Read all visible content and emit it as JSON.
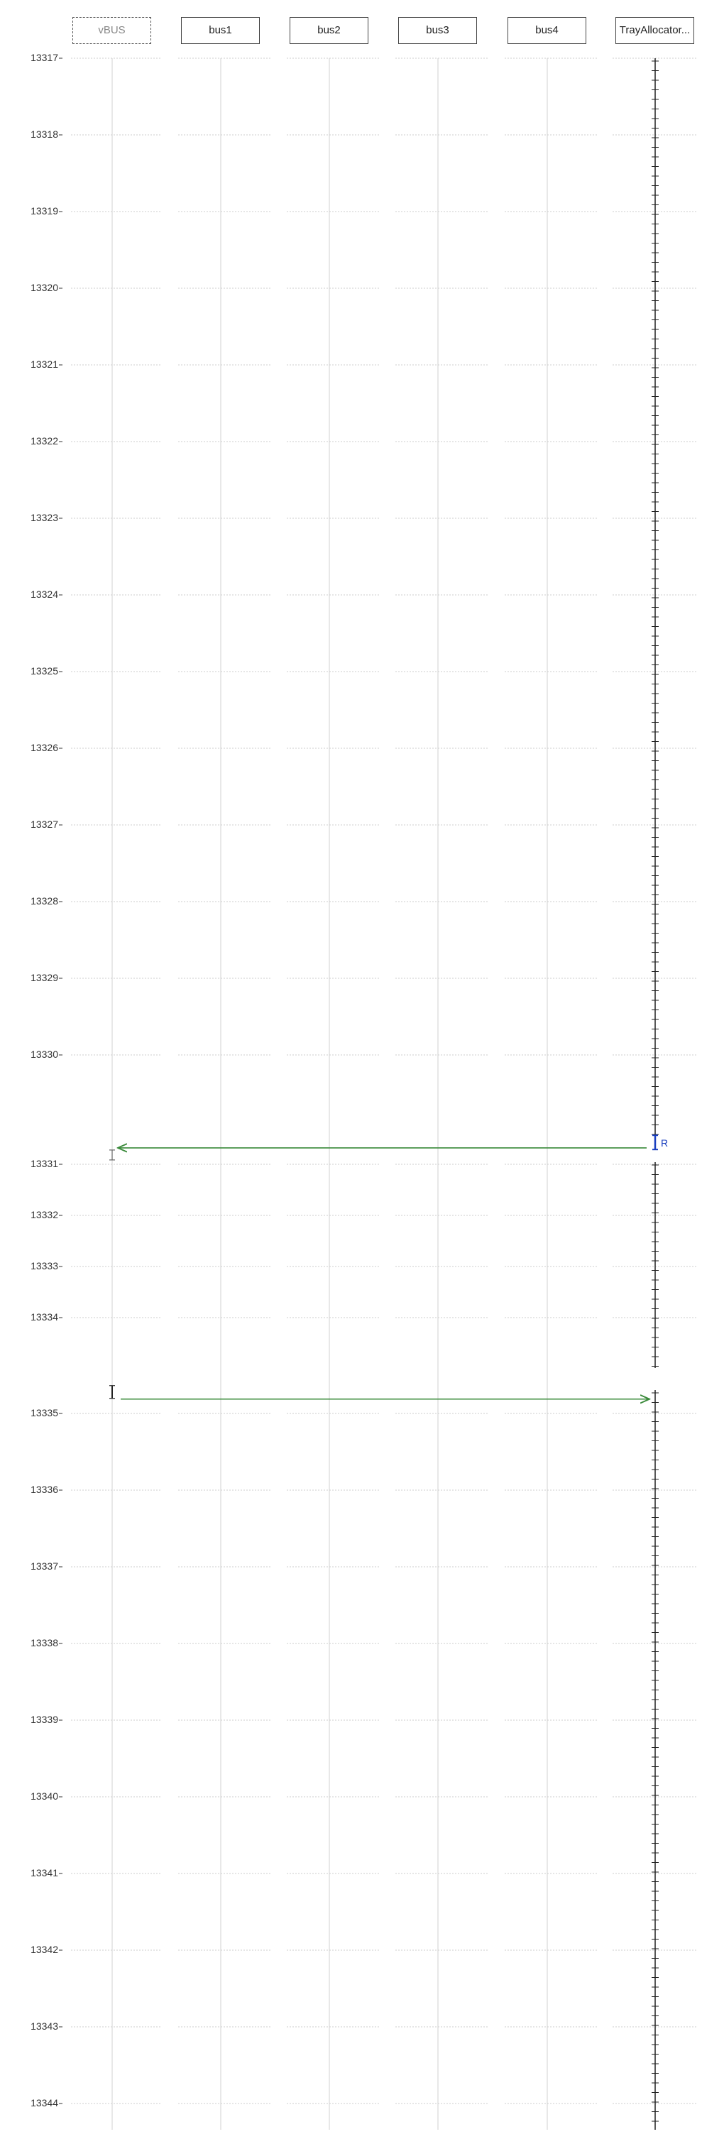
{
  "lifelines": [
    {
      "label": "vBUS",
      "style": "dashed"
    },
    {
      "label": "bus1",
      "style": "solid"
    },
    {
      "label": "bus2",
      "style": "solid"
    },
    {
      "label": "bus3",
      "style": "solid"
    },
    {
      "label": "bus4",
      "style": "solid"
    },
    {
      "label": "TrayAllocator...",
      "style": "solid"
    }
  ],
  "time_axis": {
    "ticks": [
      "13317",
      "13318",
      "13319",
      "13320",
      "13321",
      "13322",
      "13323",
      "13324",
      "13325",
      "13326",
      "13327",
      "13328",
      "13329",
      "13330",
      "13331",
      "13332",
      "13333",
      "13334",
      "13335",
      "13336",
      "13337",
      "13338",
      "13339",
      "13340",
      "13341",
      "13342",
      "13343",
      "13344"
    ]
  },
  "messages": [
    {
      "from": "TrayAllocator...",
      "to": "vBUS",
      "time": 13330.85
    },
    {
      "from": "vBUS",
      "to": "TrayAllocator...",
      "time": 13334.85
    }
  ],
  "activations": [
    {
      "lifeline": "TrayAllocator...",
      "time": 13330.8,
      "label": "R",
      "color": "#1a3fbf"
    }
  ],
  "colors": {
    "message": "#3a8a3a",
    "activation": "#1a3fbf",
    "grid": "#cccccc",
    "lifeline": "#d0d0d0"
  }
}
